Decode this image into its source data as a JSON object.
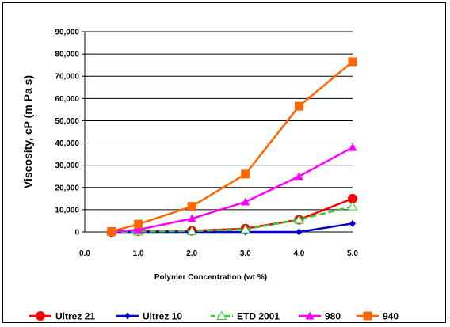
{
  "chart_data": {
    "type": "line",
    "xlabel": "Polymer Concentration (wt %)",
    "ylabel": "Viscosity, cP (m Pa s)",
    "xlim": [
      0.0,
      5.0
    ],
    "ylim": [
      0,
      90000
    ],
    "x_ticks": [
      "0.0",
      "1.0",
      "2.0",
      "3.0",
      "4.0",
      "5.0"
    ],
    "y_ticks": [
      "0",
      "10,000",
      "20,000",
      "30,000",
      "40,000",
      "50,000",
      "60,000",
      "70,000",
      "80,000",
      "90,000"
    ],
    "grid": "horizontal",
    "legend_position": "bottom",
    "series": [
      {
        "name": "Ultrez 21",
        "color": "#ff0000",
        "marker": "circle",
        "dash": false,
        "x": [
          0.5,
          1.0,
          2.0,
          3.0,
          4.0,
          5.0
        ],
        "y": [
          0,
          300,
          500,
          1500,
          5500,
          15000
        ]
      },
      {
        "name": "Ultrez 10",
        "color": "#0000cc",
        "marker": "diamond",
        "dash": false,
        "x": [
          0.5,
          1.0,
          2.0,
          3.0,
          4.0,
          5.0
        ],
        "y": [
          0,
          0,
          0,
          0,
          0,
          3800
        ]
      },
      {
        "name": "ETD 2001",
        "color": "#33cc33",
        "marker": "triangle-open",
        "dash": true,
        "x": [
          0.5,
          1.0,
          2.0,
          3.0,
          4.0,
          5.0
        ],
        "y": [
          0,
          200,
          400,
          1200,
          5500,
          11500
        ]
      },
      {
        "name": "980",
        "color": "#ff00ff",
        "marker": "triangle",
        "dash": false,
        "x": [
          0.5,
          1.0,
          2.0,
          3.0,
          4.0,
          5.0
        ],
        "y": [
          0,
          1000,
          6000,
          13500,
          25000,
          38000
        ]
      },
      {
        "name": "940",
        "color": "#ff6600",
        "marker": "square",
        "dash": false,
        "x": [
          0.5,
          1.0,
          2.0,
          3.0,
          4.0,
          5.0
        ],
        "y": [
          200,
          3500,
          11500,
          26000,
          56500,
          76500
        ]
      }
    ]
  }
}
